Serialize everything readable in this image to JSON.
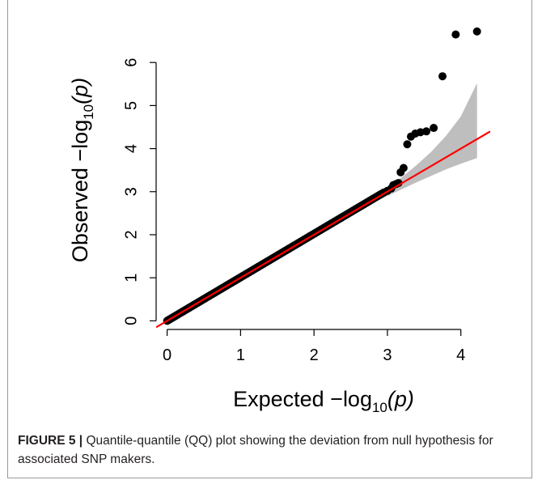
{
  "chart_data": {
    "type": "scatter",
    "xlabel": "Expected  −log",
    "ylabel": "Observed  −log",
    "axis_label_subscript": "10",
    "axis_label_suffix": "(p)",
    "xlim": [
      -0.15,
      4.4
    ],
    "ylim": [
      -0.2,
      7.0
    ],
    "xticks": [
      0,
      1,
      2,
      3,
      4
    ],
    "yticks": [
      0,
      1,
      2,
      3,
      4,
      5,
      6
    ],
    "xtick_labels": [
      "0",
      "1",
      "2",
      "3",
      "4"
    ],
    "ytick_labels": [
      "0",
      "1",
      "2",
      "3",
      "4",
      "5",
      "6"
    ],
    "grid": false,
    "reference_line": {
      "from": [
        -0.15,
        -0.15
      ],
      "to": [
        4.4,
        4.4
      ],
      "color": "#ff0000"
    },
    "confidence_band": {
      "color": "#bebebe",
      "x": [
        2.3,
        2.6,
        2.8,
        3.0,
        3.2,
        3.4,
        3.6,
        3.8,
        4.0,
        4.22
      ],
      "lower": [
        2.28,
        2.56,
        2.74,
        2.9,
        3.06,
        3.22,
        3.37,
        3.52,
        3.65,
        3.78
      ],
      "upper": [
        2.34,
        2.67,
        2.89,
        3.1,
        3.34,
        3.62,
        3.93,
        4.3,
        4.75,
        5.52
      ]
    },
    "points_dense_segment": {
      "from": [
        0.0,
        0.0
      ],
      "to": [
        2.92,
        2.95
      ]
    },
    "points_tail": [
      [
        2.95,
        2.98
      ],
      [
        3.0,
        3.02
      ],
      [
        3.05,
        3.07
      ],
      [
        3.08,
        3.15
      ],
      [
        3.12,
        3.18
      ],
      [
        3.15,
        3.2
      ],
      [
        3.18,
        3.45
      ],
      [
        3.22,
        3.55
      ],
      [
        3.27,
        4.1
      ],
      [
        3.32,
        4.28
      ],
      [
        3.38,
        4.35
      ],
      [
        3.45,
        4.38
      ],
      [
        3.53,
        4.4
      ],
      [
        3.63,
        4.48
      ],
      [
        3.75,
        5.68
      ],
      [
        3.93,
        6.65
      ],
      [
        4.22,
        6.72
      ]
    ],
    "point_color": "#000000"
  },
  "caption": {
    "label": "FIGURE 5 |",
    "text": " Quantile-quantile (QQ) plot showing the deviation from null hypothesis for associated SNP makers."
  }
}
